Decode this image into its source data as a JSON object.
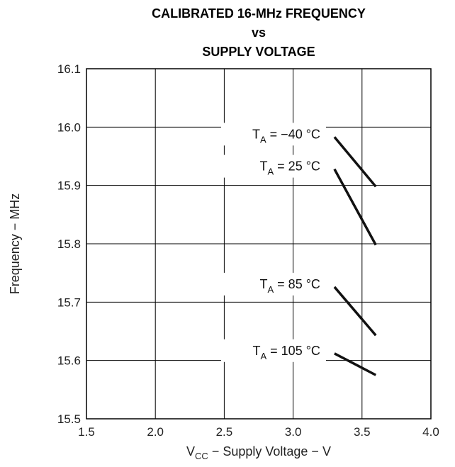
{
  "chart_data": {
    "type": "line",
    "title": [
      "CALIBRATED 16-MHz FREQUENCY",
      "vs",
      "SUPPLY VOLTAGE"
    ],
    "xlabel": {
      "main": "V",
      "sub": "CC",
      "rest": " − Supply Voltage − V"
    },
    "ylabel": "Frequency − MHz",
    "xlim": [
      1.5,
      4.0
    ],
    "ylim": [
      15.5,
      16.1
    ],
    "x_ticks": [
      "1.5",
      "2.0",
      "2.5",
      "3.0",
      "3.5",
      "4.0"
    ],
    "y_ticks": [
      "15.5",
      "15.6",
      "15.7",
      "15.8",
      "15.9",
      "16.0",
      "16.1"
    ],
    "grid": true,
    "legend": "none",
    "series": [
      {
        "label": {
          "main": "T",
          "sub": "A",
          "rest": " = −40 °C"
        },
        "x": [
          3.3,
          3.6
        ],
        "y": [
          15.983,
          15.898
        ]
      },
      {
        "label": {
          "main": "T",
          "sub": "A",
          "rest": " = 25 °C"
        },
        "x": [
          3.3,
          3.6
        ],
        "y": [
          15.928,
          15.798
        ]
      },
      {
        "label": {
          "main": "T",
          "sub": "A",
          "rest": " = 85 °C"
        },
        "x": [
          3.3,
          3.6
        ],
        "y": [
          15.726,
          15.643
        ]
      },
      {
        "label": {
          "main": "T",
          "sub": "A",
          "rest": " = 105 °C"
        },
        "x": [
          3.3,
          3.6
        ],
        "y": [
          15.612,
          15.575
        ]
      }
    ]
  }
}
